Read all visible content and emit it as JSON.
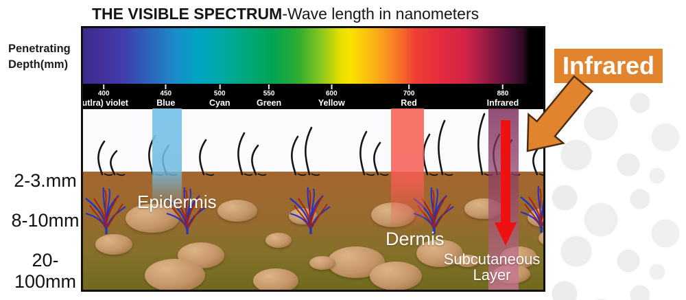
{
  "title": {
    "bold": "THE VISIBLE SPECTRUM",
    "regular": "-Wave length in nanometers"
  },
  "axis": {
    "label_line1": "Penetrating",
    "label_line2": "Depth(mm)",
    "depths": [
      "2-3.mm",
      "8-10mm",
      "20-100mm"
    ]
  },
  "spectrum": {
    "unit": "nanometers",
    "ticks": [
      {
        "nm": "400",
        "name": "(utlra) violet",
        "pos_pct": 4.5
      },
      {
        "nm": "450",
        "name": "Blue",
        "pos_pct": 18.0
      },
      {
        "nm": "500",
        "name": "Cyan",
        "pos_pct": 29.7
      },
      {
        "nm": "550",
        "name": "Green",
        "pos_pct": 40.4
      },
      {
        "nm": "600",
        "name": "Yellow",
        "pos_pct": 54.0
      },
      {
        "nm": "700",
        "name": "Red",
        "pos_pct": 70.8
      },
      {
        "nm": "880",
        "name": "Infrared",
        "pos_pct": 91.2
      }
    ]
  },
  "skin_labels": {
    "epidermis": "Epidermis",
    "dermis": "Dermis",
    "subcutaneous_line1": "Subcutaneous",
    "subcutaneous_line2": "Layer"
  },
  "callout": {
    "label": "Infrared"
  },
  "beams": [
    {
      "name": "blue-beam",
      "wavelength_nm": "450",
      "color": "#7ac4e8"
    },
    {
      "name": "red-beam",
      "wavelength_nm": "700",
      "color": "#f7695c"
    },
    {
      "name": "infrared-beam",
      "wavelength_nm": "880",
      "color": "#8c3e68"
    }
  ],
  "colors": {
    "callout_orange": "#e2832d",
    "arrow_red": "#ee1111",
    "frame_black": "#101010",
    "skin_surface": "#c4743c",
    "epidermis_pink": "#d4647c",
    "dermis_brown": "#a5662f",
    "subcutaneous_olive": "#6f6b1e"
  }
}
